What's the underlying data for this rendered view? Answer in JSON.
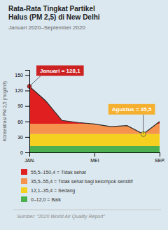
{
  "chart_data": {
    "type": "area",
    "title": [
      "Rata-Rata Tingkat Partikel",
      "Halus (PM 2,5) di New Delhi"
    ],
    "subtitle": "Januari 2020–September 2020",
    "y_label": "Konsentrasi PM 2,5 (mcg/m3)",
    "categories": [
      "JAN.",
      null,
      null,
      null,
      "MEI",
      null,
      null,
      null,
      "SEP."
    ],
    "values": [
      128.1,
      100,
      62,
      58,
      55,
      50,
      52,
      35.5,
      60
    ],
    "color": "#2d2d2d",
    "ylim": [
      0,
      160
    ],
    "yticks": [
      0,
      30,
      60,
      90,
      120,
      150
    ],
    "zones": [
      {
        "name": "55,5–150,4 = Tidak sehat",
        "color": "#e02020",
        "ymin": 55.5,
        "ymax": 160
      },
      {
        "name": "35,5–55,4 = Tidak sehat bagi kelompok sensitif",
        "color": "#f5924e",
        "ymin": 35.5,
        "ymax": 55.5
      },
      {
        "name": "12,1–35,4 = Sedang",
        "color": "#f5d020",
        "ymin": 12.1,
        "ymax": 35.5
      },
      {
        "name": "0–12,0 = Baik",
        "color": "#4caf50",
        "ymin": 0,
        "ymax": 12.1
      }
    ],
    "annotations": [
      {
        "text": "Januari = 128,1",
        "index": 0,
        "color": "#cc2222",
        "marker_color": "#cc2222"
      },
      {
        "text": "Agustus = 35,5",
        "index": 7,
        "color": "#f5b030",
        "marker_color": "#f5d020"
      }
    ],
    "source": "Sumber: “2020 World Air Quality Report”",
    "background_color": "#dce8f0"
  }
}
